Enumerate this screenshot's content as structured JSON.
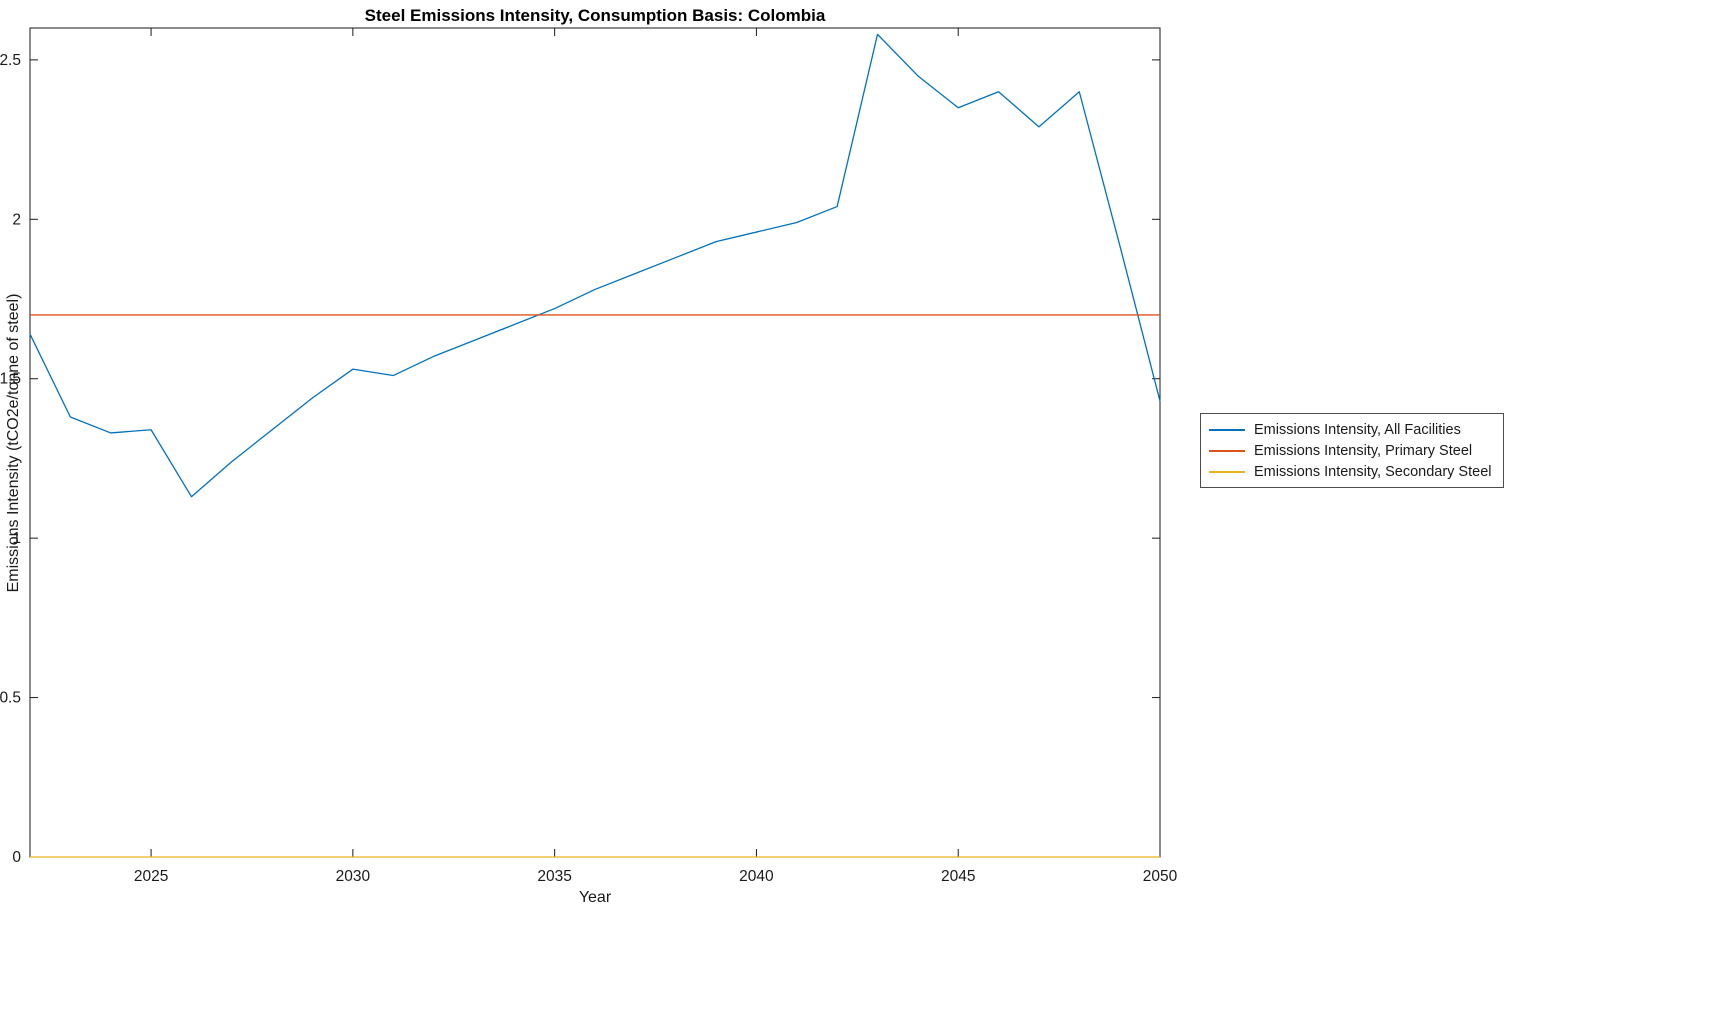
{
  "chart_data": {
    "type": "line",
    "title": "Steel Emissions Intensity, Consumption Basis: Colombia",
    "xlabel": "Year",
    "ylabel": "Emissions Intensity (tCO2e/tonne of steel)",
    "xlim": [
      2022,
      2050
    ],
    "ylim": [
      0,
      2.6
    ],
    "xticks": [
      2025,
      2030,
      2035,
      2040,
      2045,
      2050
    ],
    "yticks": [
      0,
      0.5,
      1,
      1.5,
      2,
      2.5
    ],
    "grid": false,
    "legend_position": "right-outside",
    "x": [
      2022,
      2023,
      2024,
      2025,
      2026,
      2027,
      2028,
      2029,
      2030,
      2031,
      2032,
      2033,
      2034,
      2035,
      2036,
      2037,
      2038,
      2039,
      2040,
      2041,
      2042,
      2043,
      2044,
      2045,
      2046,
      2047,
      2048,
      2049,
      2050
    ],
    "series": [
      {
        "name": "Emissions Intensity, All Facilities",
        "color": "#0072BD",
        "values": [
          1.64,
          1.38,
          1.33,
          1.34,
          1.13,
          1.24,
          1.34,
          1.44,
          1.53,
          1.51,
          1.57,
          1.62,
          1.67,
          1.72,
          1.78,
          1.83,
          1.88,
          1.93,
          1.96,
          1.99,
          2.04,
          2.58,
          2.45,
          2.35,
          2.4,
          2.29,
          2.4,
          1.92,
          1.43
        ]
      },
      {
        "name": "Emissions Intensity, Primary Steel",
        "color": "#D95319",
        "values": [
          1.7,
          1.7,
          1.7,
          1.7,
          1.7,
          1.7,
          1.7,
          1.7,
          1.7,
          1.7,
          1.7,
          1.7,
          1.7,
          1.7,
          1.7,
          1.7,
          1.7,
          1.7,
          1.7,
          1.7,
          1.7,
          1.7,
          1.7,
          1.7,
          1.7,
          1.7,
          1.7,
          1.7,
          1.7
        ]
      },
      {
        "name": "Emissions Intensity, Secondary Steel",
        "color": "#EDB120",
        "values": [
          0,
          0,
          0,
          0,
          0,
          0,
          0,
          0,
          0,
          0,
          0,
          0,
          0,
          0,
          0,
          0,
          0,
          0,
          0,
          0,
          0,
          0,
          0,
          0,
          0,
          0,
          0,
          0,
          0
        ]
      }
    ]
  }
}
